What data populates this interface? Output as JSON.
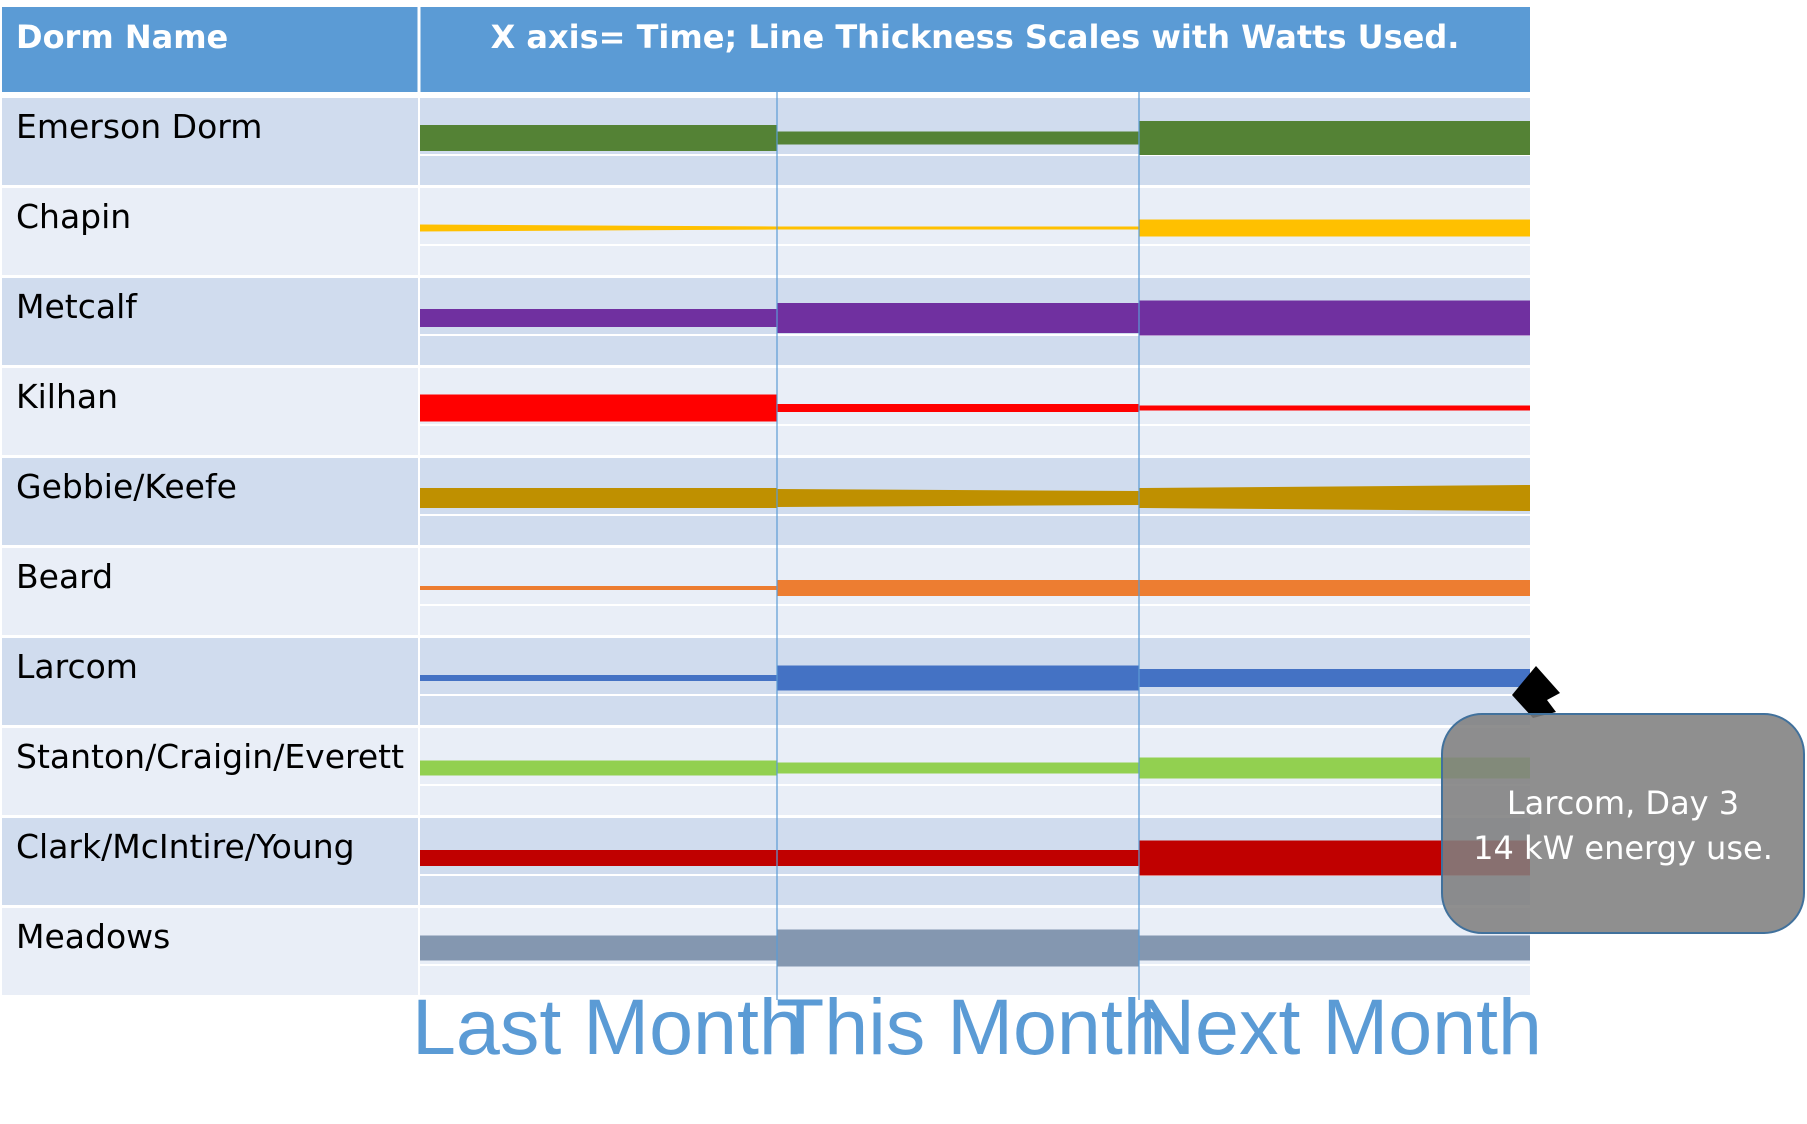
{
  "chart_data": {
    "type": "table",
    "title": "X axis= Time; Line Thickness Scales with Watts Used.",
    "row_header": "Dorm Name",
    "periods": [
      "Last Month",
      "This Month",
      "Next Month"
    ],
    "colors": {
      "header_bg": "#5b9bd5",
      "row_dark": "#d0dcee",
      "row_light": "#e9eef7",
      "period_divider": "#5b9bd5",
      "month_label": "#5b9bd5",
      "tooltip_bg": "#7f7f7f"
    },
    "thickness_unit": "relative line thickness (arbitrary units)",
    "dorms": [
      {
        "name": "Emerson Dorm",
        "color": "#548235",
        "segments": [
          [
            26,
            26
          ],
          [
            13,
            13
          ],
          [
            34,
            34
          ]
        ]
      },
      {
        "name": "Chapin",
        "color": "#ffc000",
        "segments": [
          [
            7,
            3
          ],
          [
            3,
            3
          ],
          [
            17,
            17
          ]
        ]
      },
      {
        "name": "Metcalf",
        "color": "#7030a0",
        "segments": [
          [
            18,
            18
          ],
          [
            30,
            30
          ],
          [
            35,
            35
          ]
        ]
      },
      {
        "name": "Kilhan",
        "color": "#ff0000",
        "segments": [
          [
            27,
            27
          ],
          [
            8,
            8
          ],
          [
            5,
            5
          ]
        ]
      },
      {
        "name": "Gebbie/Keefe",
        "color": "#bf9000",
        "segments": [
          [
            20,
            20
          ],
          [
            18,
            14
          ],
          [
            20,
            26
          ]
        ]
      },
      {
        "name": "Beard",
        "color": "#ed7d31",
        "segments": [
          [
            4,
            4
          ],
          [
            16,
            16
          ],
          [
            16,
            16
          ]
        ]
      },
      {
        "name": "Larcom",
        "color": "#4472c4",
        "segments": [
          [
            6,
            6
          ],
          [
            25,
            25
          ],
          [
            18,
            18
          ]
        ]
      },
      {
        "name": "Stanton/Craigin/Everett",
        "color": "#92d050",
        "segments": [
          [
            15,
            15
          ],
          [
            11,
            11
          ],
          [
            21,
            21
          ]
        ]
      },
      {
        "name": "Clark/McIntire/Young",
        "color": "#c00000",
        "segments": [
          [
            16,
            16
          ],
          [
            16,
            16
          ],
          [
            35,
            35
          ]
        ]
      },
      {
        "name": "Meadows",
        "color": "#8497b0",
        "segments": [
          [
            25,
            25
          ],
          [
            37,
            37
          ],
          [
            25,
            25
          ]
        ]
      }
    ],
    "tooltip": {
      "lines": [
        "Larcom, Day 3",
        "14 kW energy use."
      ]
    }
  }
}
